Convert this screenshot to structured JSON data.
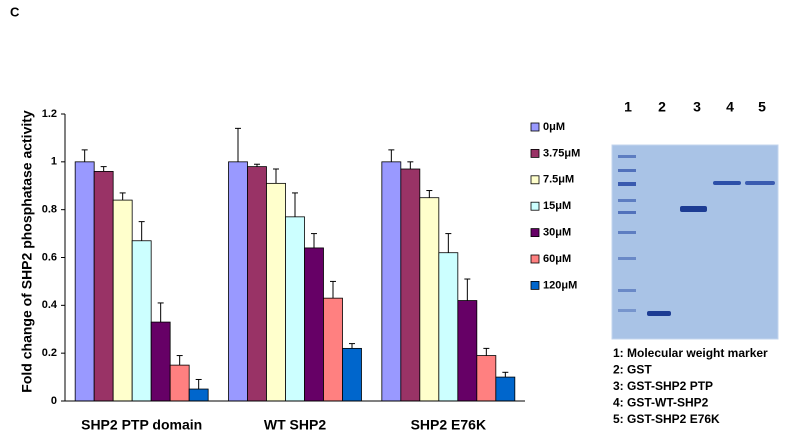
{
  "panel_label": "C",
  "chart_data": {
    "type": "bar",
    "y_label": "Fold change of SHP2 phosphatase activity",
    "categories": [
      "SHP2 PTP domain",
      "WT SHP2",
      "SHP2 E76K"
    ],
    "ylim": [
      0,
      1.2
    ],
    "yticks": [
      0,
      0.2,
      0.4,
      0.6,
      0.8,
      1,
      1.2
    ],
    "series": [
      {
        "name": "0μM",
        "color": "#9999ff",
        "values": [
          1.0,
          1.0,
          1.0
        ],
        "errors": [
          0.05,
          0.14,
          0.05
        ]
      },
      {
        "name": "3.75μM",
        "color": "#993366",
        "values": [
          0.96,
          0.98,
          0.97
        ],
        "errors": [
          0.02,
          0.01,
          0.03
        ]
      },
      {
        "name": "7.5μM",
        "color": "#ffffcc",
        "values": [
          0.84,
          0.91,
          0.85
        ],
        "errors": [
          0.03,
          0.06,
          0.03
        ]
      },
      {
        "name": "15μM",
        "color": "#ccffff",
        "values": [
          0.67,
          0.77,
          0.62
        ],
        "errors": [
          0.08,
          0.1,
          0.08
        ]
      },
      {
        "name": "30μM",
        "color": "#660066",
        "values": [
          0.33,
          0.64,
          0.42
        ],
        "errors": [
          0.08,
          0.06,
          0.09
        ]
      },
      {
        "name": "60μM",
        "color": "#ff8080",
        "values": [
          0.15,
          0.43,
          0.19
        ],
        "errors": [
          0.04,
          0.07,
          0.03
        ]
      },
      {
        "name": "120μM",
        "color": "#0066cc",
        "values": [
          0.05,
          0.22,
          0.1
        ],
        "errors": [
          0.04,
          0.02,
          0.02
        ]
      }
    ]
  },
  "gel": {
    "lanes": [
      "1",
      "2",
      "3",
      "4",
      "5"
    ],
    "legend": [
      "1: Molecular weight marker",
      "2: GST",
      "3: GST-SHP2 PTP",
      "4: GST-WT-SHP2",
      "5: GST-SHP2 E76K"
    ]
  }
}
